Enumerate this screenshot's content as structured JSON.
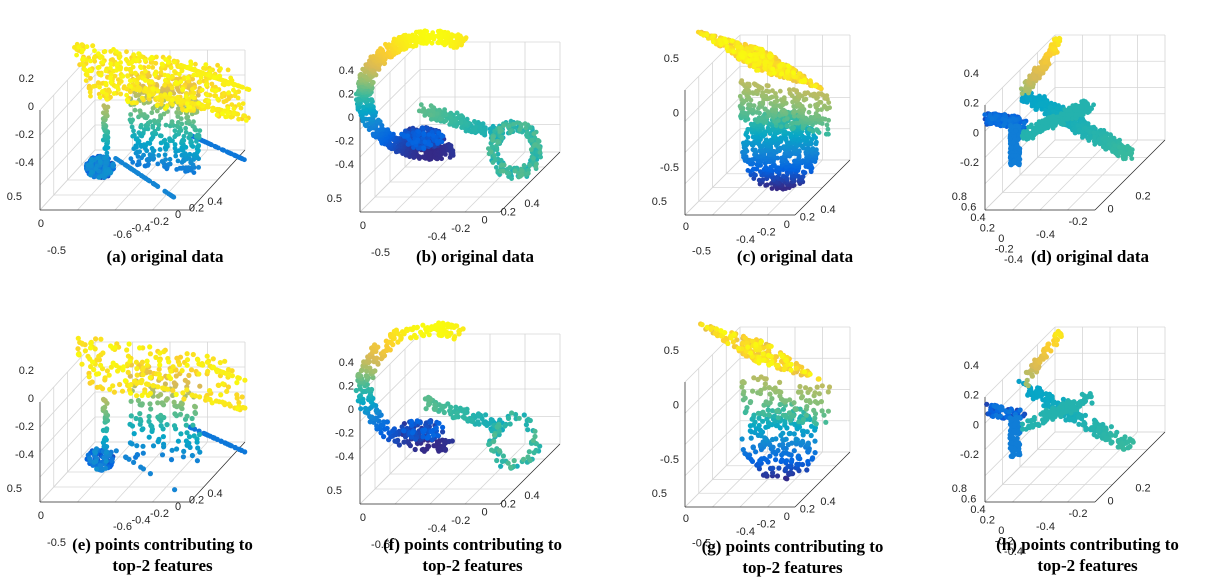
{
  "figure": {
    "panels": [
      {
        "id": "a",
        "caption": [
          "(a) original data"
        ],
        "shape": "chair",
        "z_ticks": [
          "0.2",
          "0",
          "-0.2",
          "-0.4"
        ],
        "y_ticks": [
          "0.5",
          "0",
          "-0.5"
        ],
        "x_ticks": [
          "-0.6",
          "-0.4",
          "-0.2",
          "0",
          "0.2",
          "0.4"
        ],
        "sampling": "dense"
      },
      {
        "id": "b",
        "caption": [
          "(b) original data"
        ],
        "shape": "ring-with-arm",
        "z_ticks": [
          "0.4",
          "0.2",
          "0",
          "-0.2",
          "-0.4"
        ],
        "y_ticks": [
          "0.5",
          "0",
          "-0.5"
        ],
        "x_ticks": [
          "-0.4",
          "-0.2",
          "0",
          "0.2",
          "0.4"
        ],
        "sampling": "dense"
      },
      {
        "id": "c",
        "caption": [
          "(c) original data"
        ],
        "shape": "toilet",
        "z_ticks": [
          "0.5",
          "0",
          "-0.5"
        ],
        "y_ticks": [
          "0.5",
          "0",
          "-0.5"
        ],
        "x_ticks": [
          "-0.4",
          "-0.2",
          "0",
          "0.2",
          "0.4"
        ],
        "sampling": "dense"
      },
      {
        "id": "d",
        "caption": [
          "(d) original data"
        ],
        "shape": "plane",
        "z_ticks": [
          "0.4",
          "0.2",
          "0",
          "-0.2"
        ],
        "y_ticks": [
          "0.8",
          "0.6",
          "0.4",
          "0.2",
          "0",
          "-0.2",
          "-0.4"
        ],
        "x_ticks": [
          "-0.4",
          "-0.2",
          "0",
          "0.2"
        ],
        "sampling": "dense"
      },
      {
        "id": "e",
        "caption": [
          "(e) points contributing to",
          "top-2 features"
        ],
        "shape": "chair",
        "z_ticks": [
          "0.2",
          "0",
          "-0.2",
          "-0.4"
        ],
        "y_ticks": [
          "0.5",
          "0",
          "-0.5"
        ],
        "x_ticks": [
          "-0.6",
          "-0.4",
          "-0.2",
          "0",
          "0.2",
          "0.4"
        ],
        "sampling": "sparse"
      },
      {
        "id": "f",
        "caption": [
          "(f) points contributing to",
          "top-2 features"
        ],
        "shape": "ring-with-arm",
        "z_ticks": [
          "0.4",
          "0.2",
          "0",
          "-0.2",
          "-0.4"
        ],
        "y_ticks": [
          "0.5",
          "0",
          "-0.5"
        ],
        "x_ticks": [
          "-0.4",
          "-0.2",
          "0",
          "0.2",
          "0.4"
        ],
        "sampling": "sparse"
      },
      {
        "id": "g",
        "caption": [
          "(g) points contributing to",
          "top-2 features"
        ],
        "shape": "toilet",
        "z_ticks": [
          "0.5",
          "0",
          "-0.5"
        ],
        "y_ticks": [
          "0.5",
          "0",
          "-0.5"
        ],
        "x_ticks": [
          "-0.4",
          "-0.2",
          "0",
          "0.2",
          "0.4"
        ],
        "sampling": "sparse"
      },
      {
        "id": "h",
        "caption": [
          "(h) points contributing to",
          "top-2 features"
        ],
        "shape": "plane",
        "z_ticks": [
          "0.4",
          "0.2",
          "0",
          "-0.2"
        ],
        "y_ticks": [
          "0.8",
          "0.6",
          "0.4",
          "0.2",
          "0",
          "-0.2",
          "-0.4"
        ],
        "x_ticks": [
          "-0.4",
          "-0.2",
          "0",
          "0.2"
        ],
        "sampling": "sparse"
      }
    ],
    "colormap": [
      "#352a87",
      "#0363e1",
      "#1485d4",
      "#06a7c6",
      "#38b99e",
      "#92bf73",
      "#d9ba56",
      "#fcce2e",
      "#f9fb0e"
    ]
  }
}
